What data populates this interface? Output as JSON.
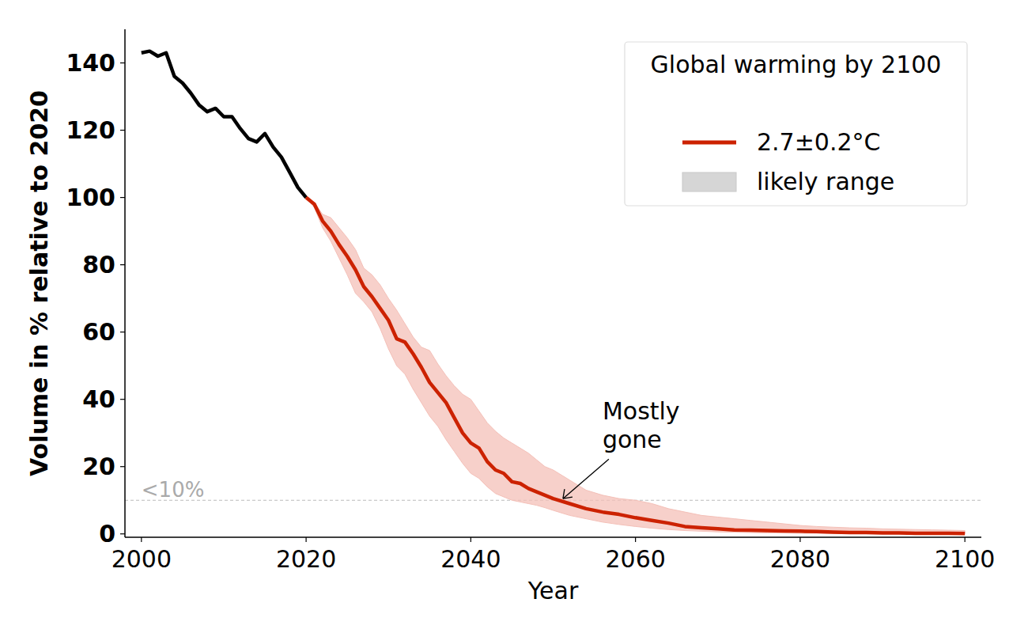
{
  "chart_data": {
    "type": "line",
    "x_label": "Year",
    "y_label": "Volume in % relative to 2020",
    "legend_title": "Global warming by 2100",
    "legend": "upper right",
    "xlim": [
      1998,
      2102
    ],
    "ylim": [
      -1,
      150
    ],
    "xticks": [
      2000,
      2020,
      2040,
      2060,
      2080,
      2100
    ],
    "yticks": [
      0,
      20,
      40,
      60,
      80,
      100,
      120,
      140
    ],
    "grid": false,
    "reference_line": {
      "y": 10,
      "label": "<10%"
    },
    "annotation": {
      "text": "Mostly\ngone",
      "x": 2051,
      "y": 10
    },
    "series": [
      {
        "type": "line",
        "color": "#000000",
        "x": [
          2000,
          2001,
          2002,
          2003,
          2004,
          2005,
          2006,
          2007,
          2008,
          2009,
          2010,
          2011,
          2012,
          2013,
          2014,
          2015,
          2016,
          2017,
          2018,
          2019,
          2020
        ],
        "values": [
          143,
          143.5,
          142,
          143,
          136,
          134,
          131,
          127.5,
          125.5,
          126.5,
          124,
          124,
          120.5,
          117.5,
          116.5,
          119,
          115,
          112,
          107.5,
          103,
          100
        ]
      },
      {
        "type": "line",
        "name": "2.7±0.2°C",
        "color": "#cc2200",
        "x": [
          2020,
          2021,
          2022,
          2023,
          2024,
          2025,
          2026,
          2027,
          2028,
          2029,
          2030,
          2031,
          2032,
          2033,
          2034,
          2035,
          2036,
          2037,
          2038,
          2039,
          2040,
          2041,
          2042,
          2043,
          2044,
          2045,
          2046,
          2047,
          2048,
          2049,
          2050,
          2052,
          2054,
          2056,
          2058,
          2060,
          2062,
          2064,
          2066,
          2068,
          2070,
          2072,
          2074,
          2076,
          2078,
          2080,
          2082,
          2084,
          2086,
          2088,
          2090,
          2092,
          2094,
          2096,
          2098,
          2100
        ],
        "values": [
          100,
          98,
          93,
          90,
          86,
          82.5,
          78.5,
          73.5,
          70.5,
          67,
          63.5,
          58,
          57,
          53.5,
          49.5,
          45,
          42,
          39,
          34.5,
          30,
          27,
          25.5,
          21.5,
          19,
          18,
          15.5,
          15,
          13.5,
          12.5,
          11.5,
          10.5,
          9,
          7.5,
          6.5,
          5.8,
          4.8,
          4,
          3.2,
          2.2,
          1.8,
          1.5,
          1.2,
          1.1,
          1,
          0.9,
          0.8,
          0.7,
          0.5,
          0.4,
          0.4,
          0.3,
          0.3,
          0.2,
          0.2,
          0.2,
          0.1
        ]
      },
      {
        "type": "area",
        "name": "likely range",
        "color": "#f4c0b8",
        "x": [
          2020,
          2021,
          2022,
          2023,
          2024,
          2025,
          2026,
          2027,
          2028,
          2029,
          2030,
          2031,
          2032,
          2033,
          2034,
          2035,
          2036,
          2037,
          2038,
          2039,
          2040,
          2041,
          2042,
          2043,
          2044,
          2045,
          2046,
          2047,
          2048,
          2049,
          2050,
          2052,
          2054,
          2056,
          2058,
          2060,
          2062,
          2064,
          2066,
          2068,
          2070,
          2072,
          2074,
          2076,
          2078,
          2080,
          2082,
          2084,
          2086,
          2088,
          2090,
          2092,
          2094,
          2096,
          2098,
          2100
        ],
        "lower": [
          100,
          97,
          91,
          87,
          82,
          77,
          71.5,
          69,
          66,
          61,
          55,
          50,
          47.5,
          43,
          39,
          35,
          32,
          28,
          24.5,
          21,
          18,
          16.5,
          14,
          12,
          11,
          10,
          9.5,
          9,
          8.5,
          7.8,
          7,
          5.5,
          4.5,
          3.5,
          2.8,
          2.2,
          1.7,
          1.3,
          1,
          0.8,
          0.6,
          0.5,
          0.4,
          0.3,
          0.3,
          0.2,
          0.2,
          0.1,
          0.1,
          0.1,
          0.1,
          0,
          0,
          0,
          0,
          0
        ],
        "upper": [
          100,
          98.5,
          95,
          94,
          91,
          88,
          84.5,
          79,
          77,
          74,
          70,
          66.5,
          62.5,
          58.5,
          55.5,
          54.5,
          50.5,
          47,
          44,
          41.5,
          40,
          36.5,
          33,
          30.5,
          28.5,
          27,
          25.5,
          24,
          22,
          20,
          19,
          16,
          13,
          11.5,
          10.5,
          10,
          9,
          7.5,
          6.5,
          5.5,
          5,
          4.5,
          4,
          3.5,
          3,
          2.5,
          2.2,
          2,
          1.8,
          1.7,
          1.5,
          1.4,
          1.3,
          1.2,
          1.1,
          1
        ]
      }
    ]
  }
}
